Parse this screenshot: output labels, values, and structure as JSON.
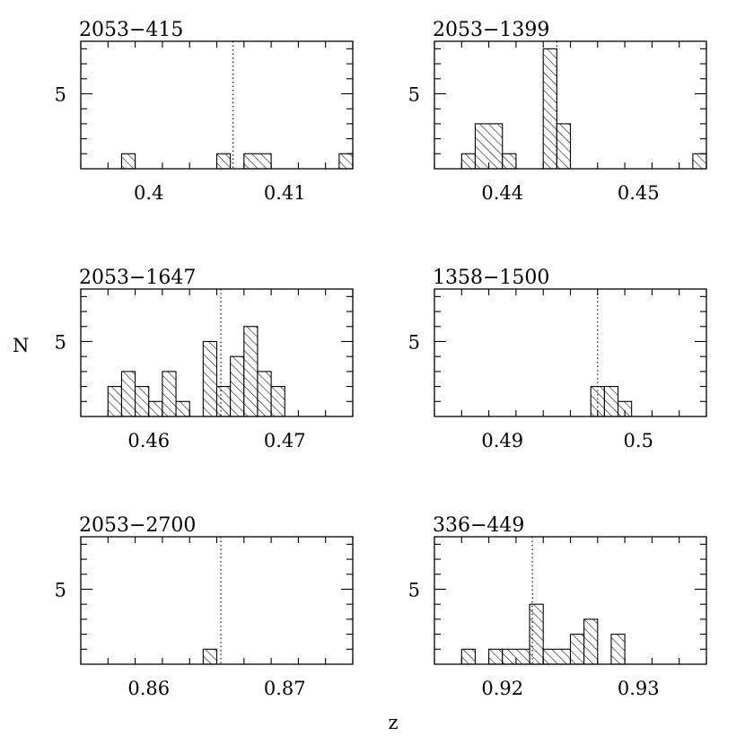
{
  "ylabel": "N",
  "xlabel": "z",
  "chart_data": [
    {
      "type": "bar",
      "title": "2053−415",
      "xlim": [
        0.395,
        0.415
      ],
      "ylim": [
        0,
        8.5
      ],
      "x_ticks": [
        0.4,
        0.41
      ],
      "x_tick_labels": [
        "0.4",
        "0.41"
      ],
      "y_ticks": [
        5
      ],
      "y_tick_labels": [
        "5"
      ],
      "bin_width": 0.001,
      "bars": [
        {
          "x0": 0.398,
          "x1": 0.399,
          "count": 1
        },
        {
          "x0": 0.405,
          "x1": 0.406,
          "count": 1
        },
        {
          "x0": 0.407,
          "x1": 0.409,
          "count": 1
        },
        {
          "x0": 0.414,
          "x1": 0.415,
          "count": 1
        }
      ],
      "reference_z": 0.4062
    },
    {
      "type": "bar",
      "title": "2053−1399",
      "xlim": [
        0.435,
        0.455
      ],
      "ylim": [
        0,
        8.5
      ],
      "x_ticks": [
        0.44,
        0.45
      ],
      "x_tick_labels": [
        "0.44",
        "0.45"
      ],
      "y_ticks": [
        5
      ],
      "y_tick_labels": [
        "5"
      ],
      "bin_width": 0.001,
      "bars": [
        {
          "x0": 0.437,
          "x1": 0.438,
          "count": 1
        },
        {
          "x0": 0.438,
          "x1": 0.44,
          "count": 3
        },
        {
          "x0": 0.44,
          "x1": 0.441,
          "count": 1
        },
        {
          "x0": 0.443,
          "x1": 0.444,
          "count": 8
        },
        {
          "x0": 0.444,
          "x1": 0.445,
          "count": 3
        },
        {
          "x0": 0.454,
          "x1": 0.455,
          "count": 1
        }
      ],
      "reference_z": 0.444
    },
    {
      "type": "bar",
      "title": "2053−1647",
      "xlim": [
        0.455,
        0.475
      ],
      "ylim": [
        0,
        8.5
      ],
      "x_ticks": [
        0.46,
        0.47
      ],
      "x_tick_labels": [
        "0.46",
        "0.47"
      ],
      "y_ticks": [
        5
      ],
      "y_tick_labels": [
        "5"
      ],
      "bin_width": 0.001,
      "bars": [
        {
          "x0": 0.457,
          "x1": 0.458,
          "count": 2
        },
        {
          "x0": 0.458,
          "x1": 0.459,
          "count": 3
        },
        {
          "x0": 0.459,
          "x1": 0.46,
          "count": 2
        },
        {
          "x0": 0.46,
          "x1": 0.461,
          "count": 1
        },
        {
          "x0": 0.461,
          "x1": 0.462,
          "count": 3
        },
        {
          "x0": 0.462,
          "x1": 0.463,
          "count": 1
        },
        {
          "x0": 0.464,
          "x1": 0.465,
          "count": 5
        },
        {
          "x0": 0.465,
          "x1": 0.466,
          "count": 2
        },
        {
          "x0": 0.466,
          "x1": 0.467,
          "count": 4
        },
        {
          "x0": 0.467,
          "x1": 0.468,
          "count": 6
        },
        {
          "x0": 0.468,
          "x1": 0.469,
          "count": 3
        },
        {
          "x0": 0.469,
          "x1": 0.47,
          "count": 2
        }
      ],
      "reference_z": 0.4653
    },
    {
      "type": "bar",
      "title": "1358−1500",
      "xlim": [
        0.485,
        0.505
      ],
      "ylim": [
        0,
        8.5
      ],
      "x_ticks": [
        0.49,
        0.5
      ],
      "x_tick_labels": [
        "0.49",
        "0.5"
      ],
      "y_ticks": [
        5
      ],
      "y_tick_labels": [
        "5"
      ],
      "bin_width": 0.001,
      "bars": [
        {
          "x0": 0.4965,
          "x1": 0.4975,
          "count": 2
        },
        {
          "x0": 0.4975,
          "x1": 0.4985,
          "count": 2
        },
        {
          "x0": 0.4985,
          "x1": 0.4995,
          "count": 1
        }
      ],
      "reference_z": 0.497
    },
    {
      "type": "bar",
      "title": "2053−2700",
      "xlim": [
        0.855,
        0.875
      ],
      "ylim": [
        0,
        8.5
      ],
      "x_ticks": [
        0.86,
        0.87
      ],
      "x_tick_labels": [
        "0.86",
        "0.87"
      ],
      "y_ticks": [
        5
      ],
      "y_tick_labels": [
        "5"
      ],
      "bin_width": 0.001,
      "bars": [
        {
          "x0": 0.864,
          "x1": 0.865,
          "count": 1
        }
      ],
      "reference_z": 0.8653
    },
    {
      "type": "bar",
      "title": "336−449",
      "xlim": [
        0.915,
        0.935
      ],
      "ylim": [
        0,
        8.5
      ],
      "x_ticks": [
        0.92,
        0.93
      ],
      "x_tick_labels": [
        "0.92",
        "0.93"
      ],
      "y_ticks": [
        5
      ],
      "y_tick_labels": [
        "5"
      ],
      "bin_width": 0.001,
      "bars": [
        {
          "x0": 0.917,
          "x1": 0.918,
          "count": 1
        },
        {
          "x0": 0.919,
          "x1": 0.92,
          "count": 1
        },
        {
          "x0": 0.92,
          "x1": 0.922,
          "count": 1
        },
        {
          "x0": 0.922,
          "x1": 0.923,
          "count": 4
        },
        {
          "x0": 0.923,
          "x1": 0.925,
          "count": 1
        },
        {
          "x0": 0.925,
          "x1": 0.926,
          "count": 2
        },
        {
          "x0": 0.926,
          "x1": 0.927,
          "count": 3
        },
        {
          "x0": 0.928,
          "x1": 0.929,
          "count": 2
        }
      ],
      "reference_z": 0.9222
    }
  ]
}
